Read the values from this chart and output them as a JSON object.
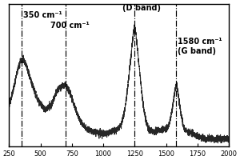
{
  "xmin": 250,
  "xmax": 2000,
  "xticks": [
    250,
    500,
    750,
    1000,
    1250,
    1500,
    1750,
    2000
  ],
  "vlines": [
    350,
    700,
    1250,
    1580
  ],
  "background_color": "#ffffff",
  "line_color": "#1a1a1a",
  "vline_color": "#000000",
  "ann_350_text": "350 cm⁻¹",
  "ann_700_text": "700 cm⁻¹",
  "ann_dband_text": "(D band)",
  "ann_1580_text": "1580 cm⁻¹\n(G band)",
  "fontsize": 7.0,
  "linewidth": 0.65,
  "noise_std": 0.018
}
